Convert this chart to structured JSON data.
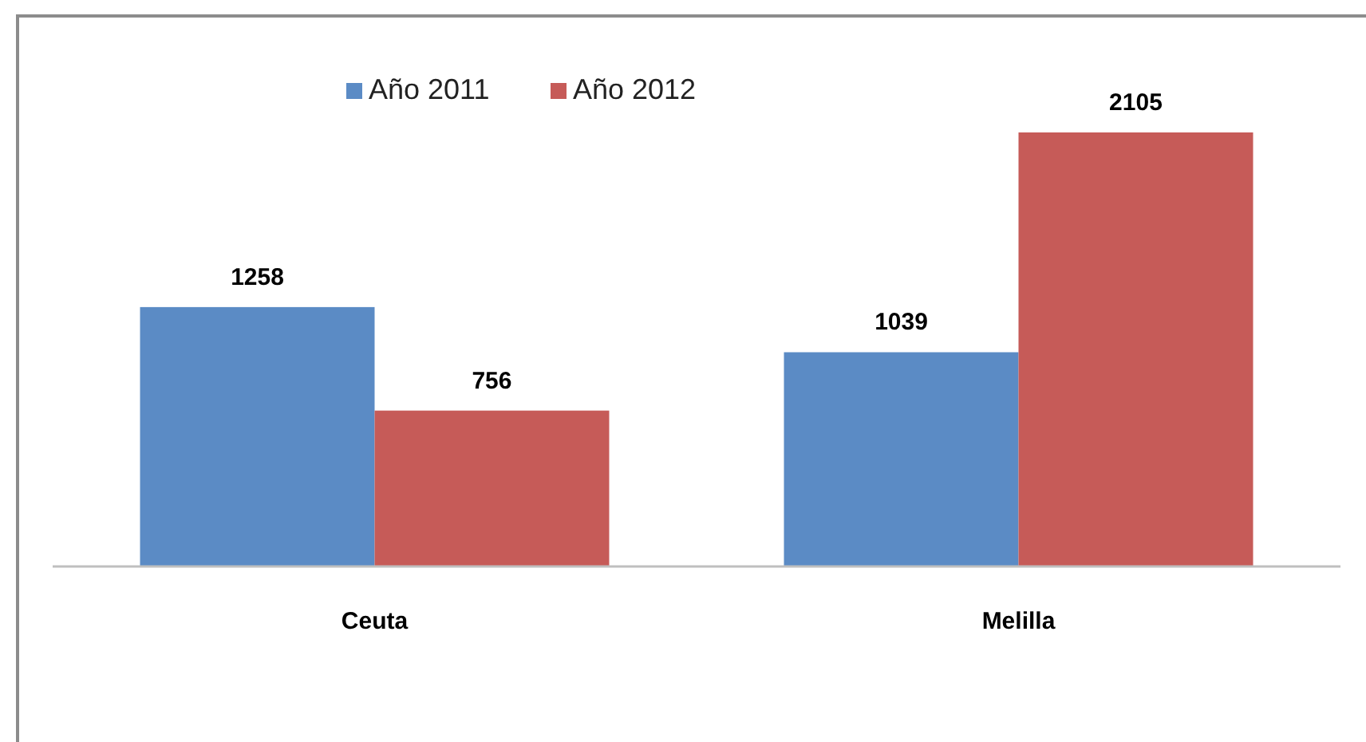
{
  "chart_data": {
    "type": "bar",
    "categories": [
      "Ceuta",
      "Melilla"
    ],
    "series": [
      {
        "name": "Año 2011",
        "color": "#5b8bc5",
        "values": [
          1258,
          1039
        ]
      },
      {
        "name": "Año 2012",
        "color": "#c65b58",
        "values": [
          756,
          2105
        ]
      }
    ],
    "data_labels": true,
    "legend": "top"
  }
}
